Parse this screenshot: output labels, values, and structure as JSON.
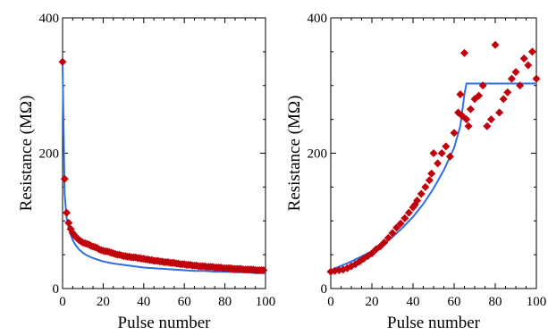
{
  "chart_data": [
    {
      "type": "scatter",
      "xlabel": "Pulse number",
      "ylabel": "Resistance (MΩ)",
      "xlim": [
        0,
        100
      ],
      "ylim": [
        0,
        400
      ],
      "x_ticks": [
        "0",
        "20",
        "40",
        "60",
        "80",
        "100"
      ],
      "y_ticks": [
        "0",
        "200",
        "400"
      ],
      "grid": false,
      "marker_color": "#c0000a",
      "fit_color": "#2f6fe0",
      "series": [
        {
          "type": "scatter",
          "x": [
            0,
            1,
            2,
            3,
            4,
            5,
            6,
            7,
            8,
            9,
            10,
            11,
            12,
            13,
            14,
            15,
            16,
            17,
            18,
            19,
            20,
            21,
            22,
            23,
            24,
            25,
            26,
            27,
            28,
            29,
            30,
            31,
            32,
            33,
            34,
            35,
            36,
            37,
            38,
            39,
            40,
            41,
            42,
            43,
            44,
            45,
            46,
            47,
            48,
            49,
            50,
            51,
            52,
            53,
            54,
            55,
            56,
            57,
            58,
            59,
            60,
            61,
            62,
            63,
            64,
            65,
            66,
            67,
            68,
            69,
            70,
            71,
            72,
            73,
            74,
            75,
            76,
            77,
            78,
            79,
            80,
            81,
            82,
            83,
            84,
            85,
            86,
            87,
            88,
            89,
            90,
            91,
            92,
            93,
            94,
            95,
            96,
            97,
            98,
            99
          ],
          "y": [
            335,
            162,
            112,
            97,
            88,
            82,
            78,
            75,
            72,
            70,
            68,
            67,
            66,
            65,
            63,
            62,
            61,
            60,
            58,
            57,
            56,
            55,
            55,
            54,
            53,
            52,
            51,
            50,
            50,
            49,
            48,
            48,
            47,
            47,
            46,
            46,
            46,
            45,
            45,
            44,
            44,
            43,
            43,
            42,
            42,
            41,
            41,
            41,
            40,
            40,
            39,
            39,
            39,
            38,
            38,
            38,
            37,
            37,
            36,
            36,
            36,
            35,
            35,
            35,
            34,
            34,
            34,
            33,
            33,
            33,
            33,
            32,
            32,
            32,
            32,
            31,
            31,
            31,
            31,
            30,
            30,
            30,
            30,
            30,
            29,
            29,
            29,
            29,
            29,
            28,
            28,
            28,
            28,
            28,
            28,
            27,
            27,
            27,
            27,
            27
          ]
        },
        {
          "type": "line",
          "x": [
            0,
            1,
            2,
            3,
            4,
            5,
            6,
            8,
            10,
            12,
            15,
            18,
            20,
            25,
            30,
            35,
            40,
            45,
            50,
            55,
            60,
            65,
            70,
            75,
            80,
            85,
            90,
            95,
            100
          ],
          "y": [
            330,
            140,
            105,
            90,
            80,
            72,
            66,
            58,
            53,
            49,
            45,
            42,
            40,
            37,
            35,
            33,
            31,
            30,
            29,
            28,
            27,
            26,
            26,
            25,
            25,
            24,
            24,
            23,
            23
          ]
        }
      ]
    },
    {
      "type": "scatter",
      "xlabel": "Pulse number",
      "ylabel": "Resistance (MΩ)",
      "xlim": [
        0,
        100
      ],
      "ylim": [
        0,
        400
      ],
      "x_ticks": [
        "0",
        "20",
        "40",
        "60",
        "80",
        "100"
      ],
      "y_ticks": [
        "0",
        "200",
        "400"
      ],
      "grid": false,
      "marker_color": "#c0000a",
      "fit_color": "#2f6fe0",
      "series": [
        {
          "type": "scatter",
          "x": [
            0,
            2,
            4,
            6,
            8,
            10,
            12,
            14,
            16,
            18,
            20,
            22,
            24,
            26,
            28,
            30,
            32,
            34,
            36,
            38,
            40,
            41,
            42,
            44,
            46,
            48,
            49,
            50,
            52,
            54,
            56,
            58,
            60,
            62,
            63,
            64,
            65,
            66,
            67,
            68,
            70,
            72,
            74,
            76,
            78,
            80,
            82,
            84,
            86,
            88,
            90,
            92,
            94,
            96,
            98,
            100
          ],
          "y": [
            25,
            26,
            27,
            28,
            30,
            33,
            36,
            40,
            44,
            48,
            52,
            58,
            62,
            68,
            75,
            82,
            90,
            96,
            104,
            112,
            120,
            124,
            130,
            140,
            150,
            160,
            170,
            200,
            185,
            200,
            210,
            195,
            230,
            260,
            287,
            255,
            348,
            250,
            240,
            265,
            280,
            285,
            300,
            240,
            250,
            360,
            260,
            280,
            290,
            310,
            320,
            300,
            340,
            330,
            350,
            310
          ]
        },
        {
          "type": "line",
          "x": [
            0,
            10,
            20,
            25,
            30,
            35,
            40,
            45,
            50,
            55,
            60,
            63,
            65,
            66,
            70,
            80,
            90,
            100
          ],
          "y": [
            27,
            40,
            55,
            65,
            76,
            90,
            106,
            125,
            148,
            175,
            208,
            240,
            287,
            303,
            303,
            303,
            303,
            303
          ]
        }
      ]
    }
  ]
}
